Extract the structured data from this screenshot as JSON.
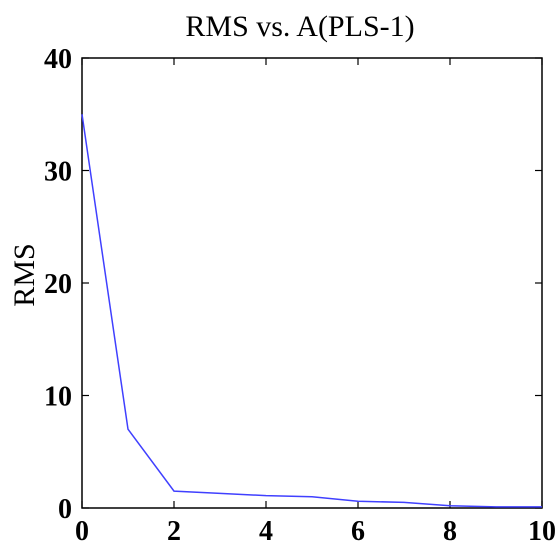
{
  "chart_data": {
    "type": "line",
    "title": "RMS vs. A(PLS-1)",
    "xlabel": "",
    "ylabel": "RMS",
    "xlim": [
      0,
      10
    ],
    "ylim": [
      0,
      40
    ],
    "xticks": [
      "0",
      "2",
      "4",
      "6",
      "8",
      "10"
    ],
    "yticks": [
      "0",
      "10",
      "20",
      "30",
      "40"
    ],
    "grid": false,
    "series": [
      {
        "color": "#4040ff",
        "x": [
          0,
          1,
          2,
          3,
          4,
          5,
          6,
          7,
          8,
          9,
          10
        ],
        "y": [
          35,
          7,
          1.5,
          1.3,
          1.1,
          1.0,
          0.6,
          0.5,
          0.2,
          0.1,
          0.1
        ]
      }
    ]
  }
}
